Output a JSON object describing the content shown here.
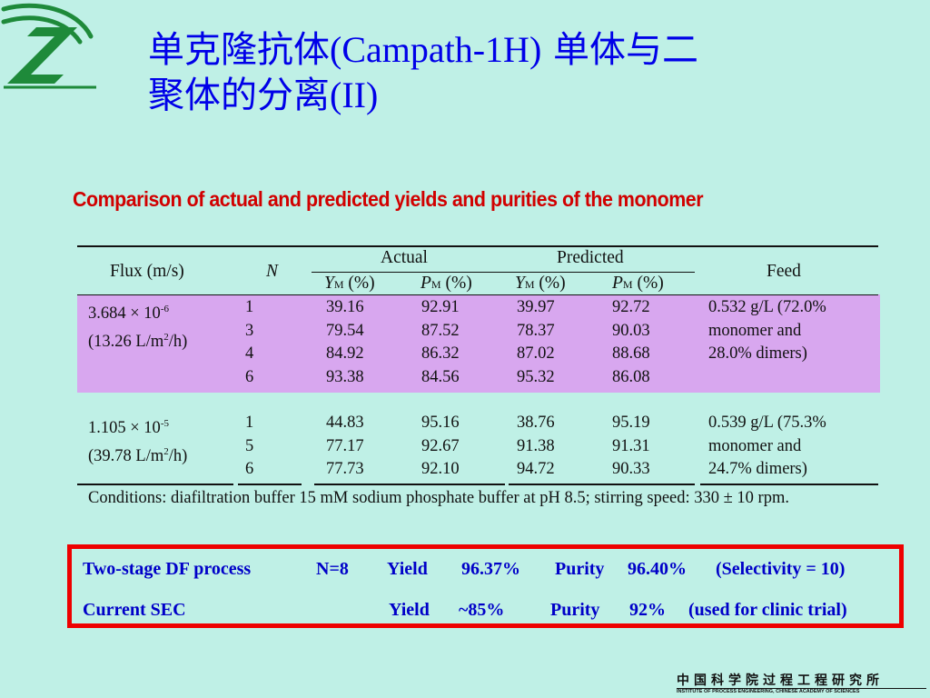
{
  "title": {
    "line1_cjk_a": "单克隆抗体",
    "line1_latin": "(Campath-1H)",
    "line1_cjk_b": " 单体与二",
    "line2_cjk": "聚体的分离",
    "line2_latin": "(II)"
  },
  "subtitle": "Comparison of actual and predicted yields and purities of the monomer",
  "table": {
    "headers": {
      "flux": "Flux (m/s)",
      "n": "N",
      "actual": "Actual",
      "predicted": "Predicted",
      "feed": "Feed",
      "ym_letter": "Y",
      "pm_letter": "P",
      "sub_m": "M",
      "pct": " (%)"
    },
    "groups": [
      {
        "flux_line1": "3.684 × 10",
        "flux_exp": "-6",
        "flux_line2a": "(13.26 L/m",
        "flux_line2_exp": "2",
        "flux_line2b": "/h)",
        "n": "1\n3\n4\n6",
        "ya": "39.16\n79.54\n84.92\n93.38",
        "pa": "92.91\n87.52\n86.32\n84.56",
        "yp": "39.97\n78.37\n87.02\n95.32",
        "pp": "92.72\n90.03\n88.68\n86.08",
        "feed": "0.532 g/L (72.0%\nmonomer and\n28.0% dimers)"
      },
      {
        "flux_line1": "1.105 × 10",
        "flux_exp": "-5",
        "flux_line2a": "(39.78 L/m",
        "flux_line2_exp": "2",
        "flux_line2b": "/h)",
        "n": "1\n5\n6",
        "ya": "44.83\n77.17\n77.73",
        "pa": "95.16\n92.67\n92.10",
        "yp": "38.76\n91.38\n94.72",
        "pp": "95.19\n91.31\n90.33",
        "feed": "0.539 g/L (75.3%\nmonomer and\n24.7% dimers)"
      }
    ],
    "conditions": "Conditions: diafiltration buffer 15 mM sodium phosphate buffer at pH 8.5; stirring speed: 330 ± 10 rpm."
  },
  "highlight": {
    "row1": {
      "process": "Two-stage DF process",
      "n": "N=8",
      "yield_label": "Yield",
      "yield_value": "96.37%",
      "purity_label": "Purity",
      "purity_value": "96.40%",
      "note": "(Selectivity = 10)"
    },
    "row2": {
      "process": "Current SEC",
      "yield_label": "Yield",
      "yield_value": "~85%",
      "purity_label": "Purity",
      "purity_value": "92%",
      "note": "(used for clinic trial)"
    }
  },
  "footer": {
    "institute_cn": "中国科学院过程工程研究所",
    "institute_en": "INSTITUTE OF PROCESS ENGINEERING, CHINESE ACADEMY OF SCIENCES"
  },
  "colors": {
    "background": "#bff0e6",
    "title": "#0000e8",
    "subtitle": "#d10000",
    "band": "#d8a7ef",
    "highlight_border": "#ee0000",
    "highlight_text": "#0000c8"
  }
}
